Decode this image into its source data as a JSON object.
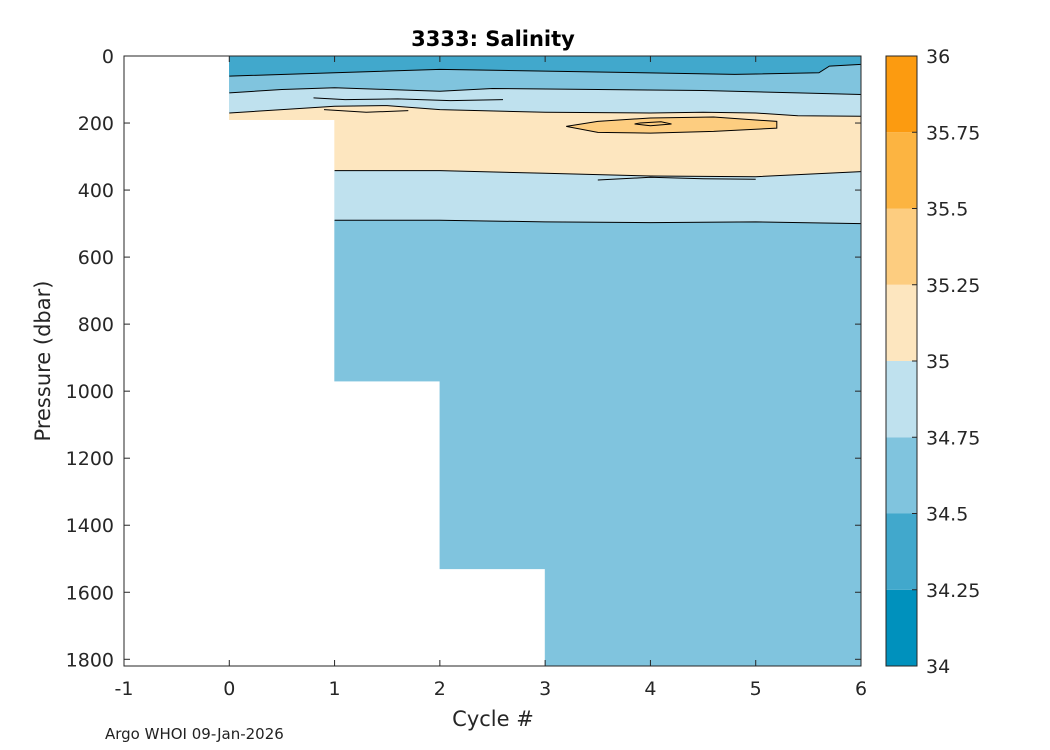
{
  "chart_data": {
    "type": "contour",
    "title": "3333:  Salinity",
    "xlabel": "Cycle #",
    "ylabel": "Pressure (dbar)",
    "xlim": [
      -1,
      6
    ],
    "ylim": [
      1820,
      0
    ],
    "x_ticks": [
      -1,
      0,
      1,
      2,
      3,
      4,
      5,
      6
    ],
    "y_ticks": [
      0,
      200,
      400,
      600,
      800,
      1000,
      1200,
      1400,
      1600,
      1800
    ],
    "colorbar": {
      "range": [
        34,
        36
      ],
      "ticks": [
        "34",
        "34.25",
        "34.5",
        "34.75",
        "35",
        "35.25",
        "35.5",
        "35.75",
        "36"
      ],
      "levels": [
        {
          "from": 34.0,
          "to": 34.25,
          "color": "#0091bd"
        },
        {
          "from": 34.25,
          "to": 34.5,
          "color": "#41a8cc"
        },
        {
          "from": 34.5,
          "to": 34.75,
          "color": "#80c4de"
        },
        {
          "from": 34.75,
          "to": 35.0,
          "color": "#bfe1ee"
        },
        {
          "from": 35.0,
          "to": 35.25,
          "color": "#fde6bf"
        },
        {
          "from": 35.25,
          "to": 35.5,
          "color": "#fdcd80"
        },
        {
          "from": 35.5,
          "to": 35.75,
          "color": "#fcb441"
        },
        {
          "from": 35.75,
          "to": 36.0,
          "color": "#fc9b10"
        }
      ]
    },
    "profile_coverage": [
      {
        "cycle_from": 0,
        "cycle_to": 1,
        "max_pressure": 190
      },
      {
        "cycle_from": 1,
        "cycle_to": 2,
        "max_pressure": 970
      },
      {
        "cycle_from": 2,
        "cycle_to": 3,
        "max_pressure": 1530
      },
      {
        "cycle_from": 3,
        "cycle_to": 6,
        "max_pressure": 1820
      }
    ],
    "bands": [
      {
        "level": 34.375,
        "points": [
          [
            0,
            0
          ],
          [
            6,
            0
          ],
          [
            6,
            25
          ],
          [
            5.7,
            30
          ],
          [
            5.6,
            50
          ],
          [
            4.8,
            55
          ],
          [
            3,
            45
          ],
          [
            2,
            40
          ],
          [
            1,
            50
          ],
          [
            0,
            60
          ]
        ]
      },
      {
        "level": 34.625,
        "points": [
          [
            0,
            60
          ],
          [
            1,
            50
          ],
          [
            2,
            40
          ],
          [
            3,
            45
          ],
          [
            4.8,
            55
          ],
          [
            5.6,
            50
          ],
          [
            5.7,
            30
          ],
          [
            6,
            25
          ],
          [
            6,
            115
          ],
          [
            5.4,
            110
          ],
          [
            4.5,
            103
          ],
          [
            3.5,
            100
          ],
          [
            2.5,
            97
          ],
          [
            2,
            105
          ],
          [
            1.5,
            100
          ],
          [
            1,
            95
          ],
          [
            0.5,
            100
          ],
          [
            0,
            110
          ]
        ]
      },
      {
        "level": 34.875,
        "points": [
          [
            0,
            110
          ],
          [
            0.5,
            100
          ],
          [
            1,
            95
          ],
          [
            1.5,
            100
          ],
          [
            2,
            105
          ],
          [
            2.5,
            97
          ],
          [
            3.5,
            100
          ],
          [
            4.5,
            103
          ],
          [
            5.4,
            110
          ],
          [
            6,
            115
          ],
          [
            6,
            180
          ],
          [
            5.4,
            178
          ],
          [
            5,
            170
          ],
          [
            4.5,
            168
          ],
          [
            4,
            170
          ],
          [
            3,
            168
          ],
          [
            2,
            160
          ],
          [
            1.5,
            148
          ],
          [
            1,
            150
          ],
          [
            0.5,
            160
          ],
          [
            0,
            170
          ]
        ]
      },
      {
        "level": 35.125,
        "points": [
          [
            0,
            170
          ],
          [
            0.5,
            160
          ],
          [
            1,
            150
          ],
          [
            1.5,
            148
          ],
          [
            2,
            160
          ],
          [
            3,
            168
          ],
          [
            4,
            170
          ],
          [
            4.5,
            168
          ],
          [
            5,
            170
          ],
          [
            5.4,
            178
          ],
          [
            6,
            180
          ],
          [
            6,
            345
          ],
          [
            5,
            360
          ],
          [
            4,
            358
          ],
          [
            3,
            350
          ],
          [
            2,
            342
          ],
          [
            1,
            342
          ],
          [
            1,
            190
          ],
          [
            0,
            190
          ]
        ]
      },
      {
        "level": 34.875,
        "points": [
          [
            1,
            342
          ],
          [
            2,
            342
          ],
          [
            3,
            350
          ],
          [
            4,
            358
          ],
          [
            5,
            360
          ],
          [
            6,
            345
          ],
          [
            6,
            500
          ],
          [
            5,
            495
          ],
          [
            4,
            497
          ],
          [
            3,
            495
          ],
          [
            2,
            490
          ],
          [
            1,
            490
          ]
        ]
      },
      {
        "level": 34.625,
        "points": [
          [
            1,
            490
          ],
          [
            2,
            490
          ],
          [
            3,
            495
          ],
          [
            4,
            497
          ],
          [
            5,
            495
          ],
          [
            6,
            500
          ],
          [
            6,
            1820
          ],
          [
            3,
            1820
          ],
          [
            3,
            1530
          ],
          [
            2,
            1530
          ],
          [
            2,
            970
          ],
          [
            1,
            970
          ]
        ]
      },
      {
        "level": 35.375,
        "points": [
          [
            3.2,
            210
          ],
          [
            3.5,
            195
          ],
          [
            4,
            185
          ],
          [
            4.6,
            182
          ],
          [
            5.2,
            195
          ],
          [
            5.2,
            215
          ],
          [
            4.6,
            225
          ],
          [
            4,
            230
          ],
          [
            3.5,
            228
          ]
        ]
      }
    ],
    "contour_lines": [
      [
        [
          0,
          60
        ],
        [
          1,
          50
        ],
        [
          2,
          40
        ],
        [
          3,
          45
        ],
        [
          4.8,
          55
        ],
        [
          5.6,
          50
        ],
        [
          5.7,
          30
        ],
        [
          6,
          25
        ]
      ],
      [
        [
          0,
          110
        ],
        [
          0.5,
          100
        ],
        [
          1,
          95
        ],
        [
          1.5,
          100
        ],
        [
          2,
          105
        ],
        [
          2.5,
          97
        ],
        [
          3.5,
          100
        ],
        [
          4.5,
          103
        ],
        [
          5.4,
          110
        ],
        [
          6,
          115
        ]
      ],
      [
        [
          0,
          170
        ],
        [
          0.5,
          160
        ],
        [
          1,
          150
        ],
        [
          1.5,
          148
        ],
        [
          2,
          160
        ],
        [
          3,
          168
        ],
        [
          4,
          170
        ],
        [
          4.5,
          168
        ],
        [
          5,
          170
        ],
        [
          5.4,
          178
        ],
        [
          6,
          180
        ]
      ],
      [
        [
          1,
          342
        ],
        [
          2,
          342
        ],
        [
          3,
          350
        ],
        [
          4,
          358
        ],
        [
          5,
          360
        ],
        [
          6,
          345
        ]
      ],
      [
        [
          1,
          490
        ],
        [
          2,
          490
        ],
        [
          3,
          495
        ],
        [
          4,
          497
        ],
        [
          5,
          495
        ],
        [
          6,
          500
        ]
      ],
      [
        [
          3.2,
          210
        ],
        [
          3.5,
          195
        ],
        [
          4,
          185
        ],
        [
          4.6,
          182
        ],
        [
          5.2,
          195
        ],
        [
          5.2,
          215
        ],
        [
          4.6,
          225
        ],
        [
          4,
          230
        ],
        [
          3.5,
          228
        ],
        [
          3.2,
          210
        ]
      ],
      [
        [
          0.8,
          125
        ],
        [
          1.1,
          130
        ],
        [
          1.6,
          128
        ],
        [
          2.1,
          133
        ],
        [
          2.6,
          130
        ]
      ],
      [
        [
          0.9,
          160
        ],
        [
          1.3,
          168
        ],
        [
          1.7,
          163
        ]
      ],
      [
        [
          3.5,
          370
        ],
        [
          4.0,
          362
        ],
        [
          4.5,
          366
        ],
        [
          5.0,
          368
        ]
      ],
      [
        [
          3.9,
          200
        ],
        [
          4.1,
          196
        ],
        [
          4.2,
          203
        ],
        [
          4.0,
          208
        ],
        [
          3.85,
          203
        ],
        [
          3.9,
          200
        ]
      ]
    ]
  },
  "footer": {
    "credit": "Argo WHOI 09-Jan-2026"
  }
}
